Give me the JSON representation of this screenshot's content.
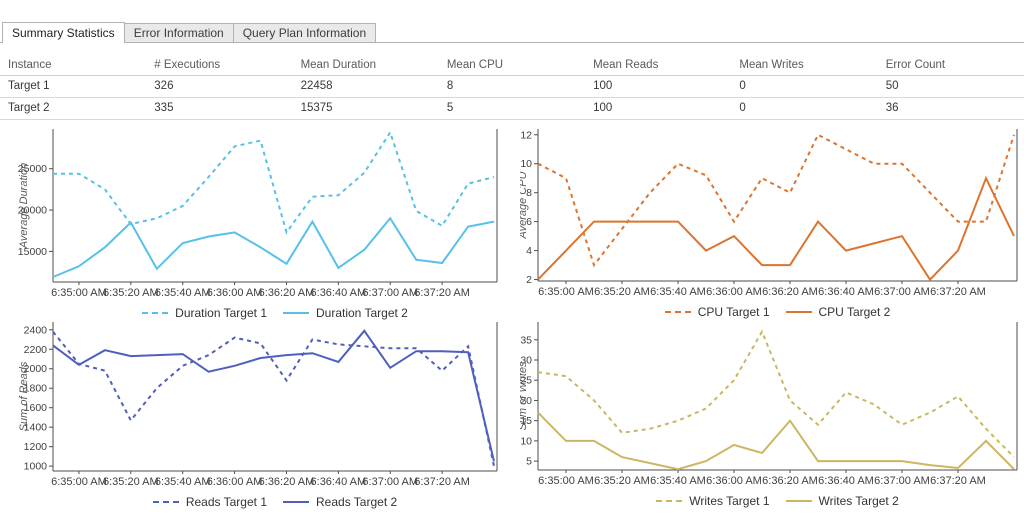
{
  "tabs": {
    "items": [
      {
        "label": "Summary Statistics",
        "active": true
      },
      {
        "label": "Error Information",
        "active": false
      },
      {
        "label": "Query Plan Information",
        "active": false
      }
    ]
  },
  "table": {
    "columns": [
      "Instance",
      "# Executions",
      "Mean Duration",
      "Mean CPU",
      "Mean Reads",
      "Mean Writes",
      "Error Count"
    ],
    "rows": [
      {
        "cells": [
          "Target 1",
          "326",
          "22458",
          "8",
          "100",
          "0",
          "50"
        ]
      },
      {
        "cells": [
          "Target 2",
          "335",
          "15375",
          "5",
          "100",
          "0",
          "36"
        ]
      }
    ]
  },
  "colors": {
    "duration": "#56C1E8",
    "cpu": "#DC742E",
    "reads": "#4F5FBD",
    "writes": "#CBB661",
    "axis": "#4d4d4d",
    "tick_text": "#3f3f3f",
    "axis_title_text": "#5a5a5a"
  },
  "chart_data": [
    {
      "type": "line",
      "y_axis_title": "Average Duration",
      "x_times": [
        "6:34:50",
        "6:35:00",
        "6:35:10",
        "6:35:20",
        "6:35:30",
        "6:35:40",
        "6:35:50",
        "6:36:00",
        "6:36:10",
        "6:36:20",
        "6:36:30",
        "6:36:40",
        "6:36:50",
        "6:37:00",
        "6:37:10",
        "6:37:20",
        "6:37:30",
        "6:37:40"
      ],
      "xticks": [
        {
          "index": 1,
          "label": "6:35:00 AM"
        },
        {
          "index": 3,
          "label": "6:35:20 AM"
        },
        {
          "index": 5,
          "label": "6:35:40 AM"
        },
        {
          "index": 7,
          "label": "6:36:00 AM"
        },
        {
          "index": 9,
          "label": "6:36:20 AM"
        },
        {
          "index": 11,
          "label": "6:36:40 AM"
        },
        {
          "index": 13,
          "label": "6:37:00 AM"
        },
        {
          "index": 15,
          "label": "6:37:20 AM"
        }
      ],
      "yticks": [
        15000,
        20000,
        25000
      ],
      "ylim": [
        11300,
        29800
      ],
      "color": "#56C1E8",
      "series": [
        {
          "name": "Duration Target 1",
          "dashed": true,
          "values": [
            24400,
            24400,
            22500,
            18300,
            19000,
            20500,
            24000,
            27700,
            28400,
            17300,
            21600,
            21800,
            24500,
            29400,
            19900,
            18100,
            23200,
            24000
          ]
        },
        {
          "name": "Duration Target 2",
          "dashed": false,
          "values": [
            11900,
            13200,
            15500,
            18500,
            12900,
            16000,
            16800,
            17300,
            15500,
            13500,
            18600,
            13000,
            15200,
            19000,
            14000,
            13600,
            18000,
            18600
          ]
        }
      ]
    },
    {
      "type": "line",
      "y_axis_title": "Average CPU",
      "x_times": [
        "6:34:50",
        "6:35:00",
        "6:35:10",
        "6:35:20",
        "6:35:30",
        "6:35:40",
        "6:35:50",
        "6:36:00",
        "6:36:10",
        "6:36:20",
        "6:36:30",
        "6:36:40",
        "6:36:50",
        "6:37:00",
        "6:37:10",
        "6:37:20",
        "6:37:30",
        "6:37:40"
      ],
      "xticks": [
        {
          "index": 1,
          "label": "6:35:00 AM"
        },
        {
          "index": 3,
          "label": "6:35:20 AM"
        },
        {
          "index": 5,
          "label": "6:35:40 AM"
        },
        {
          "index": 7,
          "label": "6:36:00 AM"
        },
        {
          "index": 9,
          "label": "6:36:20 AM"
        },
        {
          "index": 11,
          "label": "6:36:40 AM"
        },
        {
          "index": 13,
          "label": "6:37:00 AM"
        },
        {
          "index": 15,
          "label": "6:37:20 AM"
        }
      ],
      "yticks": [
        2,
        4,
        6,
        8,
        10,
        12
      ],
      "ylim": [
        1.9,
        12.4
      ],
      "color": "#DC742E",
      "series": [
        {
          "name": "CPU Target 1",
          "dashed": true,
          "values": [
            10,
            9,
            3,
            5.5,
            8,
            10,
            9.2,
            6,
            9,
            8,
            12,
            11,
            10,
            10,
            8,
            6,
            6,
            12
          ]
        },
        {
          "name": "CPU Target 2",
          "dashed": false,
          "values": [
            2,
            4,
            6,
            6,
            6,
            6,
            4,
            5,
            3,
            3,
            6,
            4,
            4.5,
            5,
            2,
            4,
            9,
            5
          ]
        }
      ]
    },
    {
      "type": "line",
      "y_axis_title": "Sum of Reads",
      "x_times": [
        "6:34:50",
        "6:35:00",
        "6:35:10",
        "6:35:20",
        "6:35:30",
        "6:35:40",
        "6:35:50",
        "6:36:00",
        "6:36:10",
        "6:36:20",
        "6:36:30",
        "6:36:40",
        "6:36:50",
        "6:37:00",
        "6:37:10",
        "6:37:20",
        "6:37:30",
        "6:37:40"
      ],
      "xticks": [
        {
          "index": 1,
          "label": "6:35:00 AM"
        },
        {
          "index": 3,
          "label": "6:35:20 AM"
        },
        {
          "index": 5,
          "label": "6:35:40 AM"
        },
        {
          "index": 7,
          "label": "6:36:00 AM"
        },
        {
          "index": 9,
          "label": "6:36:20 AM"
        },
        {
          "index": 11,
          "label": "6:36:40 AM"
        },
        {
          "index": 13,
          "label": "6:37:00 AM"
        },
        {
          "index": 15,
          "label": "6:37:20 AM"
        }
      ],
      "yticks": [
        1000,
        1200,
        1400,
        1600,
        1800,
        2000,
        2200,
        2400
      ],
      "ylim": [
        950,
        2480
      ],
      "color": "#4F5FBD",
      "series": [
        {
          "name": "Reads Target 1",
          "dashed": true,
          "values": [
            2380,
            2050,
            1980,
            1470,
            1800,
            2030,
            2140,
            2320,
            2260,
            1880,
            2300,
            2250,
            2230,
            2210,
            2210,
            1980,
            2230,
            1000
          ]
        },
        {
          "name": "Reads Target 2",
          "dashed": false,
          "values": [
            2240,
            2040,
            2190,
            2130,
            2140,
            2150,
            1970,
            2030,
            2110,
            2140,
            2160,
            2070,
            2390,
            2010,
            2180,
            2180,
            2170,
            1050
          ]
        }
      ]
    },
    {
      "type": "line",
      "y_axis_title": "Sum of Writes",
      "x_times": [
        "6:34:50",
        "6:35:00",
        "6:35:10",
        "6:35:20",
        "6:35:30",
        "6:35:40",
        "6:35:50",
        "6:36:00",
        "6:36:10",
        "6:36:20",
        "6:36:30",
        "6:36:40",
        "6:36:50",
        "6:37:00",
        "6:37:10",
        "6:37:20",
        "6:37:30",
        "6:37:40"
      ],
      "xticks": [
        {
          "index": 1,
          "label": "6:35:00 AM"
        },
        {
          "index": 3,
          "label": "6:35:20 AM"
        },
        {
          "index": 5,
          "label": "6:35:40 AM"
        },
        {
          "index": 7,
          "label": "6:36:00 AM"
        },
        {
          "index": 9,
          "label": "6:36:20 AM"
        },
        {
          "index": 11,
          "label": "6:36:40 AM"
        },
        {
          "index": 13,
          "label": "6:37:00 AM"
        },
        {
          "index": 15,
          "label": "6:37:20 AM"
        }
      ],
      "yticks": [
        5,
        10,
        15,
        20,
        25,
        30,
        35
      ],
      "ylim": [
        2.8,
        39.4
      ],
      "color": "#CBB661",
      "series": [
        {
          "name": "Writes Target 1",
          "dashed": true,
          "values": [
            27,
            26,
            20,
            12,
            13,
            15,
            18,
            25,
            37,
            20,
            14,
            22,
            19,
            14,
            17,
            21,
            13,
            6
          ]
        },
        {
          "name": "Writes Target 2",
          "dashed": false,
          "values": [
            17,
            10,
            10,
            6,
            4.5,
            3,
            5,
            9,
            7,
            15,
            5,
            5,
            5,
            5,
            4,
            3.3,
            10,
            3
          ]
        }
      ]
    }
  ]
}
